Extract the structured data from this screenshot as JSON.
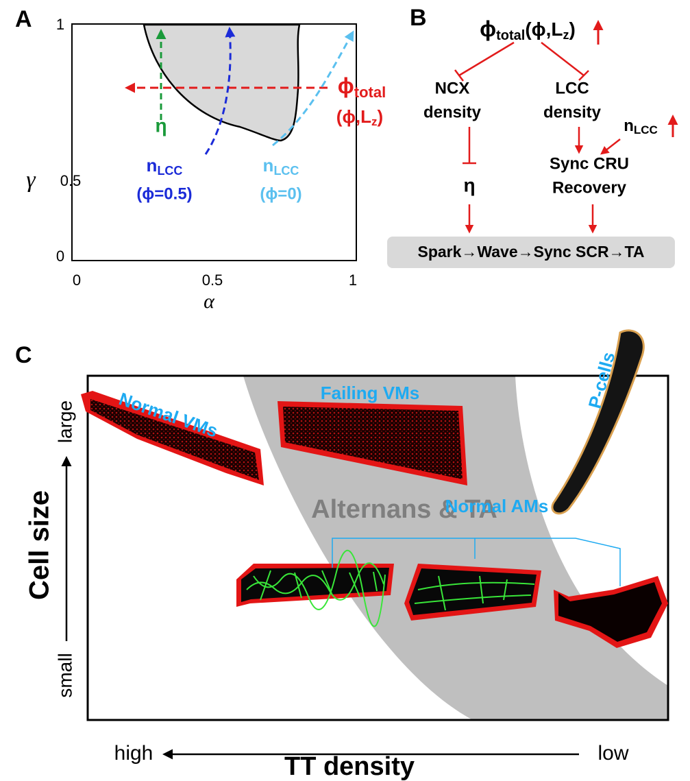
{
  "panel_a": {
    "label": "A",
    "x_axis_label": "α",
    "y_axis_label": "γ",
    "xticks": [
      0,
      0.5,
      1
    ],
    "yticks": [
      0,
      0.5,
      1
    ],
    "eta": "η",
    "phi_total": {
      "symbol": "ϕ",
      "sub": "total",
      "args": "(ϕ,L",
      "args_sub": "z",
      "close": ")"
    },
    "n_lcc_dark": {
      "symbol": "n",
      "sub": "LCC",
      "condition": "(ϕ=0.5)"
    },
    "n_lcc_light": {
      "symbol": "n",
      "sub": "LCC",
      "condition": "(ϕ=0)"
    }
  },
  "panel_b": {
    "label": "B",
    "phi_total": {
      "symbol": "ϕ",
      "sub": "total",
      "args": "(ϕ,L",
      "args_sub": "z",
      "close": ")"
    },
    "ncx": [
      "NCX",
      "density"
    ],
    "lcc": [
      "LCC",
      "density"
    ],
    "n_lcc": {
      "symbol": "n",
      "sub": "LCC"
    },
    "sync": [
      "Sync CRU",
      "Recovery"
    ],
    "eta": "η",
    "outcome": "Spark→Wave→Sync SCR→TA"
  },
  "panel_c": {
    "label": "C",
    "normal_vms": "Normal VMs",
    "failing_vms": "Failing VMs",
    "p_cells": "P-cells",
    "region": "Alternans & TA",
    "normal_ams": "Normal AMs",
    "y_axis_label": "Cell size",
    "y_large": "large",
    "y_small": "small",
    "x_axis_label": "TT density",
    "x_high": "high",
    "x_low": "low"
  }
}
